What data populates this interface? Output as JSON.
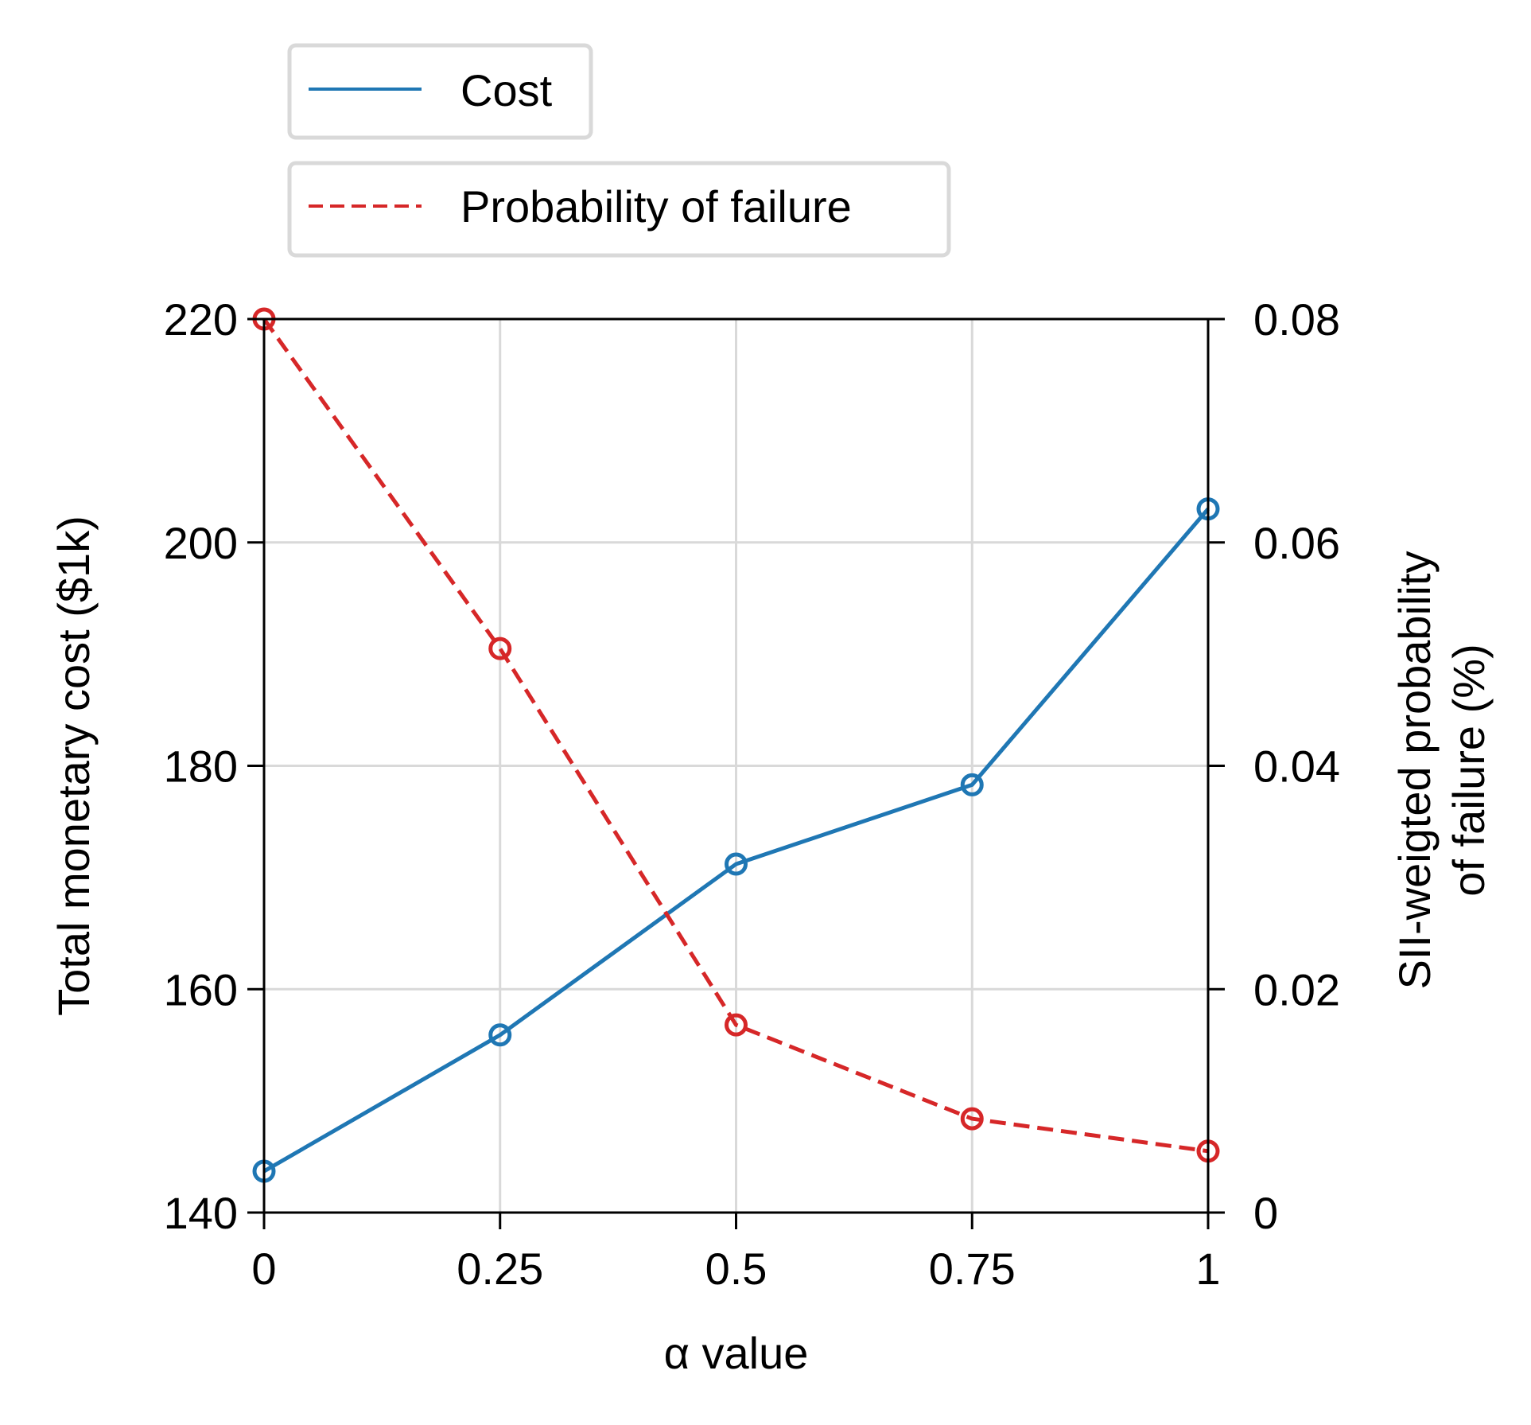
{
  "chart_data": {
    "type": "line",
    "x": [
      0,
      0.25,
      0.5,
      0.75,
      1
    ],
    "xticks": [
      "0",
      "0.25",
      "0.5",
      "0.75",
      "1"
    ],
    "xlabel": "α value",
    "xlim": [
      0,
      1
    ],
    "ylabel_left": "Total monetary cost ($1k)",
    "ylim_left": [
      140,
      220
    ],
    "yticks_left": [
      "140",
      "160",
      "180",
      "200",
      "220"
    ],
    "ylabel_right": [
      "SII-weigted probability",
      "of failure (%)"
    ],
    "ylim_right": [
      0,
      0.08
    ],
    "yticks_right": [
      "0",
      "0.02",
      "0.04",
      "0.06",
      "0.08"
    ],
    "grid": true,
    "legend_position": "top-left, outside plot",
    "series": [
      {
        "name": "Cost",
        "axis": "left",
        "style": "solid",
        "color": "#1f77b4",
        "values": [
          143.7,
          155.9,
          171.2,
          178.3,
          203.0
        ]
      },
      {
        "name": "Probability of failure",
        "axis": "right",
        "style": "dashed",
        "color": "#d62728",
        "values": [
          0.08,
          0.0505,
          0.0168,
          0.0084,
          0.0055
        ]
      }
    ]
  }
}
